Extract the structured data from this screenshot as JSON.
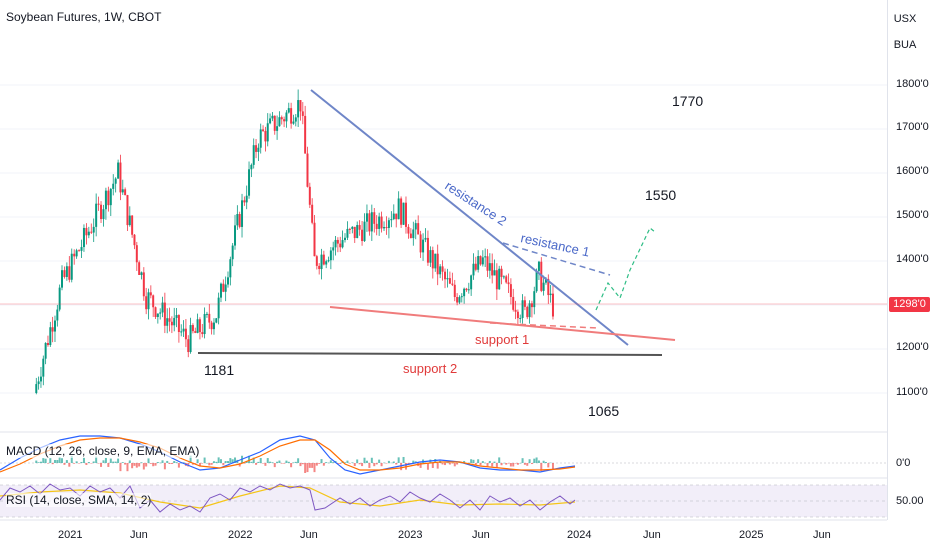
{
  "header": {
    "title": "Soybean Futures, 1W, CBOT",
    "currency_button": "USX",
    "unit_button": "BUA"
  },
  "price_axis": {
    "ticks": [
      "1800'0",
      "1700'0",
      "1600'0",
      "1500'0",
      "1400'0",
      "1200'0",
      "1100'0"
    ],
    "current_price_label": "1298'0",
    "current_price_color": "#f23645"
  },
  "time_axis": {
    "labels": [
      "2021",
      "Jun",
      "2022",
      "Jun",
      "2023",
      "Jun",
      "2024",
      "Jun",
      "2025",
      "Jun"
    ]
  },
  "annotations": {
    "resistance_1": "resistance 1",
    "resistance_2": "resistance 2",
    "support_1": "support 1",
    "support_2": "support 2",
    "target_1770": "1770",
    "target_1550": "1550",
    "level_1181": "1181",
    "level_1065": "1065"
  },
  "macd": {
    "label": "MACD (12, 26, close, 9, EMA, EMA)",
    "zero_label": "0'0"
  },
  "rsi": {
    "label": "RSI (14, close, SMA, 14, 2)",
    "mid_label": "50.00"
  },
  "colors": {
    "up": "#089981",
    "down": "#f23645",
    "resistance": "#6f86c8",
    "support": "#f07c7c",
    "support2": "#555555",
    "dashed_projection": "#2ebd85",
    "rsi_band": "#ede7f6"
  },
  "chart_data": {
    "type": "candlestick",
    "title": "Soybean Futures, 1W, CBOT",
    "y_unit": "USX/BUA",
    "ylim": [
      1010,
      1860
    ],
    "x_range": [
      "2020-11",
      "2025-10"
    ],
    "approx_price_path": [
      {
        "date": "2020-11",
        "close": 1100
      },
      {
        "date": "2021-01",
        "close": 1350
      },
      {
        "date": "2021-05",
        "close": 1600
      },
      {
        "date": "2021-07",
        "close": 1320
      },
      {
        "date": "2021-10",
        "close": 1220
      },
      {
        "date": "2021-12",
        "close": 1280
      },
      {
        "date": "2022-03",
        "close": 1680
      },
      {
        "date": "2022-06",
        "close": 1760
      },
      {
        "date": "2022-07",
        "close": 1400
      },
      {
        "date": "2022-09",
        "close": 1450
      },
      {
        "date": "2023-01",
        "close": 1520
      },
      {
        "date": "2023-05",
        "close": 1320
      },
      {
        "date": "2023-07",
        "close": 1400
      },
      {
        "date": "2023-10",
        "close": 1280
      },
      {
        "date": "2023-11",
        "close": 1370
      },
      {
        "date": "2023-12",
        "close": 1298
      }
    ],
    "trendlines": [
      {
        "name": "resistance 2",
        "from": {
          "date": "2022-06",
          "value": 1790
        },
        "to": {
          "date": "2024-05",
          "value": 1200
        }
      },
      {
        "name": "resistance 1",
        "from": {
          "date": "2023-06",
          "value": 1410
        },
        "to": {
          "date": "2024-02",
          "value": 1365
        }
      },
      {
        "name": "support 1",
        "from": {
          "date": "2022-06",
          "value": 1285
        },
        "to": {
          "date": "2024-06",
          "value": 1215
        }
      },
      {
        "name": "support 2",
        "from": {
          "date": "2021-10",
          "value": 1181
        },
        "to": {
          "date": "2024-06",
          "value": 1181
        }
      }
    ],
    "levels": [
      1770,
      1550,
      1181,
      1065
    ],
    "last_price": 1298
  }
}
